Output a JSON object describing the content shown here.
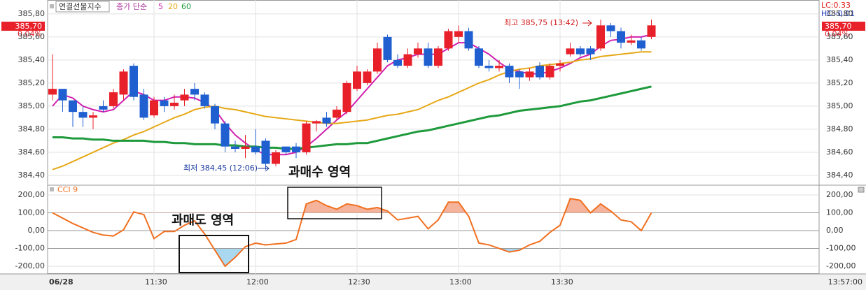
{
  "chart_data": [
    {
      "type": "candlestick",
      "legend_label": "연결선물지수",
      "ma_prefix": "종가 단순",
      "lc_label": "LC:0.33",
      "hc_label": "HC:-0.01",
      "last_price_label": "385,70",
      "change_label": "0.04%",
      "annotations": [
        "최고 385,75 (13:42)",
        "최저 384,45 (12:06)"
      ],
      "up_color": "#e8202a",
      "down_color": "#1f5fd0",
      "categories": [
        "06/28",
        null,
        null,
        null,
        null,
        null,
        null,
        null,
        null,
        null,
        "11:30",
        null,
        null,
        null,
        null,
        null,
        null,
        null,
        null,
        null,
        "12:00",
        null,
        null,
        null,
        null,
        null,
        null,
        null,
        null,
        null,
        "12:30",
        null,
        null,
        null,
        null,
        null,
        null,
        null,
        null,
        null,
        "13:00",
        null,
        null,
        null,
        null,
        null,
        null,
        null,
        null,
        null,
        "13:30",
        null,
        null,
        null,
        null,
        null,
        null,
        null,
        null,
        "13:57:00"
      ],
      "open": [
        385.1,
        385.15,
        385.05,
        384.95,
        384.9,
        385.0,
        385.0,
        385.1,
        385.35,
        385.1,
        384.92,
        385.05,
        385.0,
        385.05,
        385.15,
        385.1,
        385.0,
        384.85,
        384.65,
        384.63,
        384.65,
        384.7,
        384.5,
        384.65,
        384.65,
        384.6,
        384.85,
        384.9,
        384.9,
        384.95,
        385.15,
        385.2,
        385.3,
        385.6,
        385.4,
        385.35,
        385.45,
        385.5,
        385.35,
        385.5,
        385.6,
        385.65,
        385.5,
        385.35,
        385.33,
        385.35,
        385.3,
        385.25,
        385.35,
        385.25,
        385.35,
        385.45,
        385.5,
        385.5,
        385.5,
        385.7,
        385.65,
        385.55,
        385.57,
        385.6
      ],
      "high": [
        385.45,
        385.15,
        385.05,
        385.0,
        384.95,
        385.05,
        385.15,
        385.32,
        385.37,
        385.15,
        385.08,
        385.08,
        385.1,
        385.15,
        385.2,
        385.12,
        385.02,
        384.87,
        384.7,
        384.75,
        384.8,
        384.72,
        384.62,
        384.65,
        384.68,
        384.87,
        384.88,
        384.95,
        385.0,
        385.22,
        385.35,
        385.32,
        385.55,
        385.62,
        385.45,
        385.5,
        385.55,
        385.55,
        385.52,
        385.67,
        385.7,
        385.68,
        385.52,
        385.4,
        385.4,
        385.37,
        385.32,
        385.33,
        385.38,
        385.37,
        385.4,
        385.55,
        385.52,
        385.52,
        385.75,
        385.72,
        385.68,
        385.62,
        385.6,
        385.75
      ],
      "low": [
        385.05,
        384.95,
        384.82,
        384.82,
        384.8,
        384.95,
        384.98,
        385.05,
        385.05,
        384.88,
        384.9,
        384.95,
        384.97,
        385.0,
        385.05,
        384.98,
        384.8,
        384.6,
        384.6,
        384.55,
        384.58,
        384.45,
        384.48,
        384.58,
        384.55,
        384.58,
        384.78,
        384.82,
        384.88,
        384.93,
        385.13,
        385.18,
        385.28,
        385.38,
        385.33,
        385.33,
        385.42,
        385.33,
        385.33,
        385.48,
        385.55,
        385.48,
        385.33,
        385.3,
        385.3,
        385.2,
        385.15,
        385.22,
        385.23,
        385.23,
        385.3,
        385.43,
        385.43,
        385.4,
        385.48,
        385.6,
        385.5,
        385.53,
        385.48,
        385.58
      ],
      "close": [
        385.15,
        385.05,
        384.95,
        384.9,
        384.92,
        384.97,
        385.12,
        385.3,
        385.08,
        384.9,
        385.05,
        385.0,
        385.03,
        385.1,
        385.1,
        385.0,
        384.85,
        384.65,
        384.63,
        384.65,
        384.6,
        384.5,
        384.6,
        384.6,
        384.6,
        384.85,
        384.87,
        384.85,
        384.97,
        385.2,
        385.3,
        385.3,
        385.5,
        385.4,
        385.35,
        385.45,
        385.5,
        385.35,
        385.5,
        385.65,
        385.65,
        385.5,
        385.35,
        385.33,
        385.35,
        385.25,
        385.25,
        385.3,
        385.25,
        385.35,
        385.37,
        385.5,
        385.45,
        385.45,
        385.7,
        385.65,
        385.55,
        385.57,
        385.5,
        385.7
      ],
      "series": [
        {
          "name": "5",
          "color": "#d020b0",
          "values": [
            385.0,
            385.1,
            385.07,
            385.0,
            384.97,
            384.95,
            384.97,
            385.05,
            385.13,
            385.1,
            385.05,
            385.05,
            385.08,
            385.08,
            385.07,
            385.03,
            384.97,
            384.85,
            384.75,
            384.68,
            384.62,
            384.58,
            384.58,
            384.58,
            384.6,
            384.65,
            384.72,
            384.8,
            384.88,
            384.95,
            385.05,
            385.15,
            385.25,
            385.35,
            385.4,
            385.42,
            385.45,
            385.45,
            385.45,
            385.5,
            385.55,
            385.55,
            385.5,
            385.45,
            385.38,
            385.32,
            385.3,
            385.28,
            385.28,
            385.3,
            385.33,
            385.37,
            385.42,
            385.45,
            385.52,
            385.57,
            385.58,
            385.6,
            385.6,
            385.62
          ]
        },
        {
          "name": "20",
          "color": "#e6a817",
          "values": [
            384.45,
            384.48,
            384.52,
            384.56,
            384.6,
            384.64,
            384.68,
            384.71,
            384.75,
            384.78,
            384.82,
            384.86,
            384.9,
            384.93,
            384.97,
            384.99,
            385.0,
            384.98,
            384.97,
            384.95,
            384.93,
            384.91,
            384.9,
            384.89,
            384.88,
            384.87,
            384.86,
            384.85,
            384.85,
            384.86,
            384.87,
            384.88,
            384.9,
            384.92,
            384.93,
            384.95,
            384.97,
            385.01,
            385.05,
            385.08,
            385.12,
            385.16,
            385.2,
            385.23,
            385.27,
            385.3,
            385.32,
            385.33,
            385.35,
            385.36,
            385.37,
            385.38,
            385.4,
            385.41,
            385.43,
            385.44,
            385.45,
            385.46,
            385.47,
            385.47
          ]
        },
        {
          "name": "60",
          "color": "#1e9a3c",
          "values": [
            384.73,
            384.73,
            384.72,
            384.72,
            384.71,
            384.71,
            384.7,
            384.7,
            384.7,
            384.7,
            384.69,
            384.69,
            384.68,
            384.68,
            384.67,
            384.67,
            384.67,
            384.66,
            384.66,
            384.65,
            384.65,
            384.64,
            384.64,
            384.63,
            384.63,
            384.64,
            384.65,
            384.66,
            384.67,
            384.67,
            384.68,
            384.68,
            384.7,
            384.72,
            384.74,
            384.76,
            384.78,
            384.79,
            384.81,
            384.83,
            384.85,
            384.87,
            384.89,
            384.91,
            384.92,
            384.94,
            384.96,
            384.97,
            384.98,
            384.99,
            385.0,
            385.02,
            385.04,
            385.05,
            385.07,
            385.09,
            385.11,
            385.13,
            385.15,
            385.17
          ]
        }
      ],
      "ylim": [
        384.315,
        385.92
      ],
      "yticks": [
        {
          "value": 384.4,
          "label": "384,40"
        },
        {
          "value": 384.6,
          "label": "384,60"
        },
        {
          "value": 384.8,
          "label": "384,80"
        },
        {
          "value": 385.0,
          "label": "385,00"
        },
        {
          "value": 385.2,
          "label": "385,20"
        },
        {
          "value": 385.4,
          "label": "385,40"
        },
        {
          "value": 385.6,
          "label": "385,60"
        },
        {
          "value": 385.8,
          "label": "385,80"
        }
      ],
      "grid": true
    },
    {
      "type": "line",
      "title": "CCI 9",
      "annotations": [
        "과매수 영역",
        "과매도 영역"
      ],
      "color": "#f07020",
      "overbought_color": "#f4b39a",
      "oversold_color": "#a9d8f0",
      "values": [
        100,
        70,
        40,
        15,
        -10,
        -25,
        -30,
        5,
        105,
        90,
        -45,
        -5,
        -5,
        30,
        55,
        -20,
        -110,
        -200,
        -150,
        -90,
        -70,
        -80,
        -75,
        -70,
        -50,
        150,
        170,
        140,
        120,
        150,
        140,
        120,
        130,
        110,
        60,
        70,
        80,
        10,
        60,
        160,
        160,
        80,
        -70,
        -80,
        -100,
        -120,
        -110,
        -80,
        -60,
        -10,
        30,
        180,
        170,
        100,
        150,
        110,
        60,
        50,
        0,
        100
      ],
      "ylim": [
        -243,
        255
      ],
      "yticks": [
        {
          "value": -200,
          "label": "-200,00"
        },
        {
          "value": -100,
          "label": "-100,00"
        },
        {
          "value": 0,
          "label": "0,00"
        },
        {
          "value": 100,
          "label": "100,00"
        },
        {
          "value": 200,
          "label": "200,00"
        }
      ],
      "grid": true
    }
  ]
}
